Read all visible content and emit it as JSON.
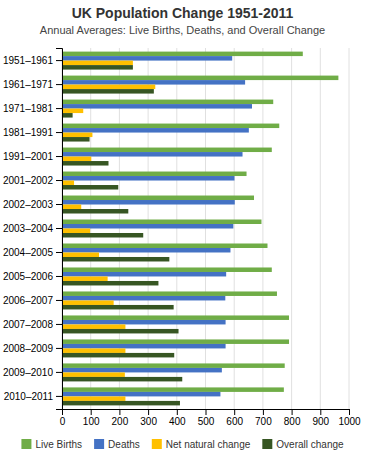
{
  "chart_data": {
    "type": "bar",
    "orientation": "horizontal",
    "title": "UK Population Change 1951-2011",
    "subtitle": "Annual Averages: Live Births, Deaths, and Overall Change",
    "categories": [
      "1951–1961",
      "1961–1971",
      "1971–1981",
      "1981–1991",
      "1991–2001",
      "2001–2002",
      "2002–2003",
      "2003–2004",
      "2004–2005",
      "2005–2006",
      "2006–2007",
      "2007–2008",
      "2008–2009",
      "2009–2010",
      "2010–2011"
    ],
    "series": [
      {
        "name": "Live Births",
        "color": "#70ad47",
        "values": [
          839,
          963,
          736,
          757,
          731,
          643,
          669,
          695,
          716,
          731,
          749,
          791,
          791,
          776,
          773
        ]
      },
      {
        "name": "Deaths",
        "color": "#4472c4",
        "values": [
          593,
          638,
          662,
          651,
          629,
          601,
          602,
          597,
          587,
          572,
          569,
          570,
          570,
          557,
          552
        ]
      },
      {
        "name": "Net natural change",
        "color": "#ffc000",
        "values": [
          247,
          325,
          74,
          106,
          102,
          42,
          67,
          98,
          129,
          159,
          180,
          221,
          221,
          219,
          221
        ]
      },
      {
        "name": "Overall change",
        "color": "#375623",
        "values": [
          247,
          320,
          37,
          96,
          162,
          196,
          231,
          283,
          374,
          336,
          389,
          406,
          391,
          419,
          411
        ]
      }
    ],
    "xlim": [
      0,
      1000
    ],
    "xticks": [
      0,
      100,
      200,
      300,
      400,
      500,
      600,
      700,
      800,
      900,
      1000
    ],
    "grid": true,
    "legend": "bottom"
  }
}
